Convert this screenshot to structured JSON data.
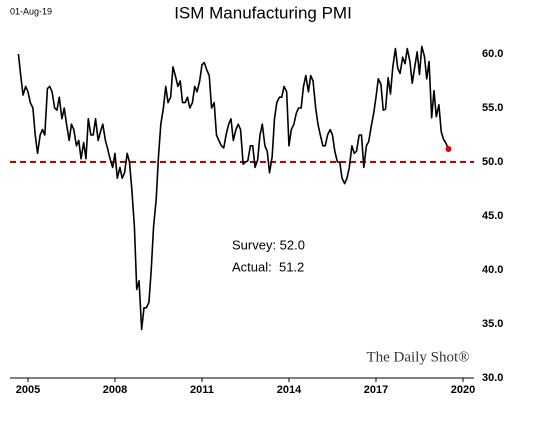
{
  "chart_data": {
    "type": "line",
    "title": "ISM Manufacturing PMI",
    "date_label": "01-Aug-19",
    "annotations": [
      "Survey: 52.0",
      "Actual:  51.2"
    ],
    "source": "The Daily Shot®",
    "xlim": [
      2004.38,
      2020.38
    ],
    "xticks": [
      2005,
      2008,
      2011,
      2014,
      2017,
      2020
    ],
    "ylim": [
      30,
      62
    ],
    "yticks": [
      {
        "value": 30,
        "label": "30.0"
      },
      {
        "value": 35,
        "label": "35.0"
      },
      {
        "value": 40,
        "label": "40.0"
      },
      {
        "value": 45,
        "label": "45.0"
      },
      {
        "value": 50,
        "label": "50.0"
      },
      {
        "value": 55,
        "label": "55.0"
      },
      {
        "value": 60,
        "label": "60.0"
      }
    ],
    "reference_line": {
      "value": 50,
      "color": "#c00000"
    },
    "highlight_last_color": "#e00000",
    "series": [
      {
        "name": "ISM Manufacturing PMI",
        "color": "#000000",
        "x": [
          2004.67,
          2004.75,
          2004.83,
          2004.92,
          2005,
          2005.08,
          2005.17,
          2005.25,
          2005.33,
          2005.42,
          2005.5,
          2005.58,
          2005.67,
          2005.75,
          2005.83,
          2005.92,
          2006,
          2006.08,
          2006.17,
          2006.25,
          2006.33,
          2006.42,
          2006.5,
          2006.58,
          2006.67,
          2006.75,
          2006.83,
          2006.92,
          2007,
          2007.08,
          2007.17,
          2007.25,
          2007.33,
          2007.42,
          2007.5,
          2007.58,
          2007.67,
          2007.75,
          2007.83,
          2007.92,
          2008,
          2008.08,
          2008.17,
          2008.25,
          2008.33,
          2008.42,
          2008.5,
          2008.58,
          2008.67,
          2008.75,
          2008.83,
          2008.92,
          2009,
          2009.08,
          2009.17,
          2009.25,
          2009.33,
          2009.42,
          2009.5,
          2009.58,
          2009.67,
          2009.75,
          2009.83,
          2009.92,
          2010,
          2010.08,
          2010.17,
          2010.25,
          2010.33,
          2010.42,
          2010.5,
          2010.58,
          2010.67,
          2010.75,
          2010.83,
          2010.92,
          2011,
          2011.08,
          2011.17,
          2011.25,
          2011.33,
          2011.42,
          2011.5,
          2011.58,
          2011.67,
          2011.75,
          2011.83,
          2011.92,
          2012,
          2012.08,
          2012.17,
          2012.25,
          2012.33,
          2012.42,
          2012.5,
          2012.58,
          2012.67,
          2012.75,
          2012.83,
          2012.92,
          2013,
          2013.08,
          2013.17,
          2013.25,
          2013.33,
          2013.42,
          2013.5,
          2013.58,
          2013.67,
          2013.75,
          2013.83,
          2013.92,
          2014,
          2014.08,
          2014.17,
          2014.25,
          2014.33,
          2014.42,
          2014.5,
          2014.58,
          2014.67,
          2014.75,
          2014.83,
          2014.92,
          2015,
          2015.08,
          2015.17,
          2015.25,
          2015.33,
          2015.42,
          2015.5,
          2015.58,
          2015.67,
          2015.75,
          2015.83,
          2015.92,
          2016,
          2016.08,
          2016.17,
          2016.25,
          2016.33,
          2016.42,
          2016.5,
          2016.58,
          2016.67,
          2016.75,
          2016.83,
          2016.92,
          2017,
          2017.08,
          2017.17,
          2017.25,
          2017.33,
          2017.42,
          2017.5,
          2017.58,
          2017.67,
          2017.75,
          2017.83,
          2017.92,
          2018,
          2018.08,
          2018.17,
          2018.25,
          2018.33,
          2018.42,
          2018.5,
          2018.58,
          2018.67,
          2018.75,
          2018.83,
          2018.92,
          2019,
          2019.08,
          2019.17,
          2019.25,
          2019.33,
          2019.42,
          2019.5
        ],
        "values": [
          60,
          58,
          56.2,
          57,
          56.5,
          55.5,
          55,
          52.5,
          50.8,
          52.5,
          53,
          52.5,
          56.8,
          57,
          56.5,
          55,
          54.8,
          56,
          54,
          55,
          53.5,
          52,
          53.5,
          53,
          51.5,
          52,
          50.3,
          51.8,
          50.3,
          54,
          52.5,
          52.5,
          54,
          52,
          52.8,
          53.5,
          52,
          51.2,
          50.3,
          49.5,
          50.8,
          48.5,
          49.5,
          48.5,
          49,
          50.8,
          50,
          47.5,
          44,
          38.2,
          39,
          34.5,
          36.5,
          36.5,
          37,
          40,
          44,
          46.5,
          50.5,
          53.5,
          55,
          57,
          55.5,
          56,
          58.8,
          58,
          57,
          57.5,
          55.5,
          55.5,
          56,
          55,
          55.5,
          57,
          56.5,
          57.5,
          59,
          59.2,
          58.5,
          58,
          55,
          55.5,
          52.5,
          52,
          51.5,
          51.3,
          52.5,
          53.5,
          54,
          52,
          53,
          53.5,
          53,
          49.8,
          50,
          50.1,
          51.5,
          51.5,
          49.5,
          50.2,
          52.5,
          53.5,
          51.5,
          51,
          49,
          50.5,
          54,
          55.5,
          56,
          56,
          57,
          56.5,
          51.5,
          53,
          53.5,
          54.5,
          55,
          55,
          57,
          58,
          56.5,
          58,
          57.5,
          55,
          53.5,
          52.5,
          51.5,
          51.5,
          52.5,
          53,
          52.5,
          51,
          50,
          50,
          48.5,
          48,
          48.5,
          49.5,
          51.5,
          50.8,
          51,
          52.5,
          52.5,
          49.5,
          51.5,
          51.9,
          53.2,
          54.5,
          56,
          57.7,
          57.2,
          54.8,
          54.9,
          57.8,
          56.3,
          58.8,
          60.5,
          58.7,
          58.2,
          59.7,
          59.1,
          60.5,
          59.3,
          57.3,
          58.7,
          60.2,
          58.1,
          60.7,
          59.8,
          57.7,
          59.3,
          54.1,
          56.6,
          54.2,
          55.3,
          52.8,
          52.1,
          51.7,
          51.2
        ]
      }
    ]
  }
}
